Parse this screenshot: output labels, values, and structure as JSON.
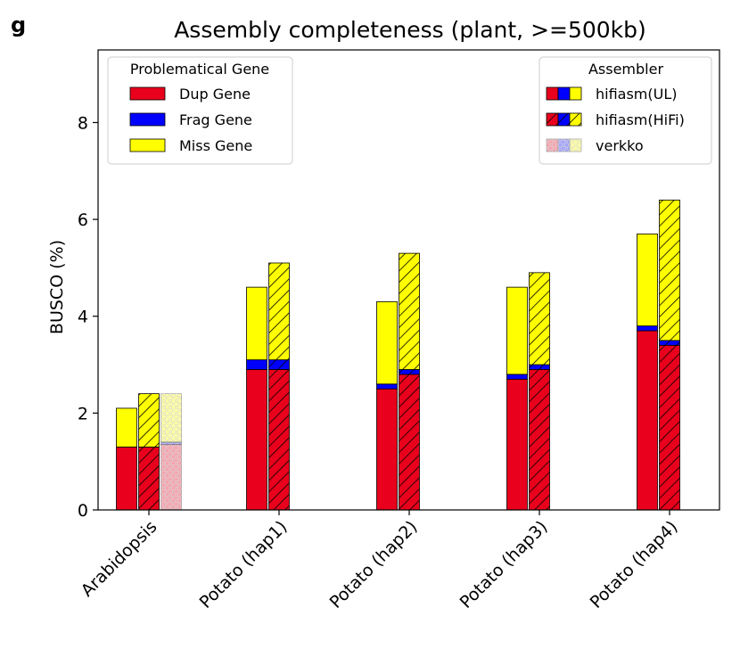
{
  "panel_label": "g",
  "chart_data": {
    "type": "bar",
    "title": "Assembly completeness (plant, >=500kb)",
    "xlabel": "",
    "ylabel": "BUSCO (%)",
    "ylim": [
      0,
      9.5
    ],
    "yticks": [
      0,
      2,
      4,
      6,
      8
    ],
    "categories": [
      "Arabidopsis",
      "Potato (hap1)",
      "Potato (hap2)",
      "Potato (hap3)",
      "Potato (hap4)"
    ],
    "stack_components": [
      {
        "name": "Dup Gene",
        "color": "#e8001c"
      },
      {
        "name": "Frag Gene",
        "color": "#0000ff"
      },
      {
        "name": "Miss Gene",
        "color": "#ffff00"
      }
    ],
    "series": [
      {
        "name": "hifiasm(UL)",
        "style": "solid",
        "dup": [
          1.3,
          2.9,
          2.5,
          2.7,
          3.7
        ],
        "frag": [
          0.0,
          0.2,
          0.1,
          0.1,
          0.1
        ],
        "miss": [
          0.8,
          1.5,
          1.7,
          1.8,
          1.9
        ]
      },
      {
        "name": "hifiasm(HiFi)",
        "style": "hatch",
        "dup": [
          1.3,
          2.9,
          2.8,
          2.9,
          3.4
        ],
        "frag": [
          0.0,
          0.2,
          0.1,
          0.1,
          0.1
        ],
        "miss": [
          1.1,
          2.0,
          2.4,
          1.9,
          2.9
        ]
      },
      {
        "name": "verkko",
        "style": "dots",
        "dup": [
          1.35,
          null,
          null,
          null,
          null
        ],
        "frag": [
          0.05,
          null,
          null,
          null,
          null
        ],
        "miss": [
          1.0,
          null,
          null,
          null,
          null
        ]
      }
    ],
    "legend_gene": {
      "title": "Problematical Gene",
      "placement": "top-left"
    },
    "legend_assembler": {
      "title": "Assembler",
      "placement": "top-right"
    },
    "grid": false
  }
}
